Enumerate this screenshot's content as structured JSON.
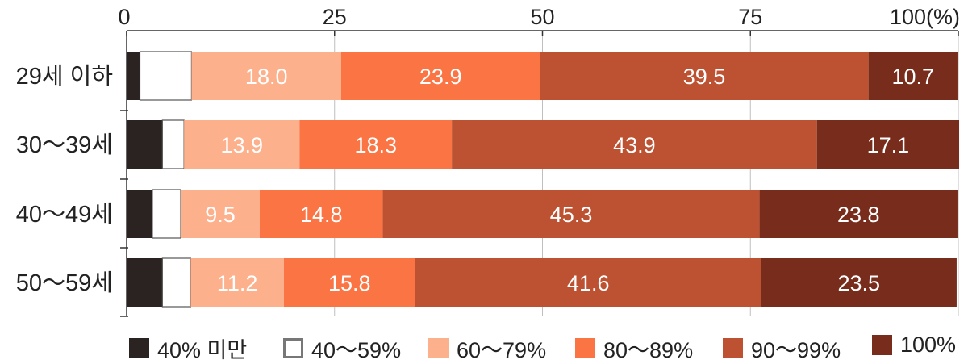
{
  "chart_data": {
    "type": "stacked-bar-horizontal",
    "title": "",
    "xlabel": "",
    "ylabel": "",
    "xlim": [
      0,
      100
    ],
    "x_ticks": [
      "0",
      "25",
      "50",
      "75",
      "100(%)"
    ],
    "x_tick_values": [
      0,
      25,
      50,
      75,
      100
    ],
    "categories": [
      "29세 이하",
      "30～39세",
      "40～49세",
      "50～59세"
    ],
    "series": [
      {
        "name": "40% 미만",
        "color": "#2b2222",
        "values": [
          1.6,
          4.3,
          3.1,
          4.3
        ],
        "labels": [
          "",
          "",
          "",
          ""
        ]
      },
      {
        "name": "40～59%",
        "color": "#ffffff",
        "values": [
          6.2,
          2.6,
          3.4,
          3.4
        ],
        "labels": [
          "",
          "",
          "",
          ""
        ]
      },
      {
        "name": "60～79%",
        "color": "#fcb08c",
        "values": [
          18.0,
          13.9,
          9.5,
          11.2
        ],
        "labels": [
          "18.0",
          "13.9",
          "9.5",
          "11.2"
        ]
      },
      {
        "name": "80～89%",
        "color": "#fa7444",
        "values": [
          23.9,
          18.3,
          14.8,
          15.8
        ],
        "labels": [
          "23.9",
          "18.3",
          "14.8",
          "15.8"
        ]
      },
      {
        "name": "90～99%",
        "color": "#bd5232",
        "values": [
          39.5,
          43.9,
          45.3,
          41.6
        ],
        "labels": [
          "39.5",
          "43.9",
          "45.3",
          "41.6"
        ]
      },
      {
        "name": "100%",
        "color": "#782c1c",
        "values": [
          10.7,
          17.1,
          23.8,
          23.5
        ],
        "labels": [
          "10.7",
          "17.1",
          "23.8",
          "23.5"
        ]
      }
    ],
    "legend_position": "bottom"
  }
}
